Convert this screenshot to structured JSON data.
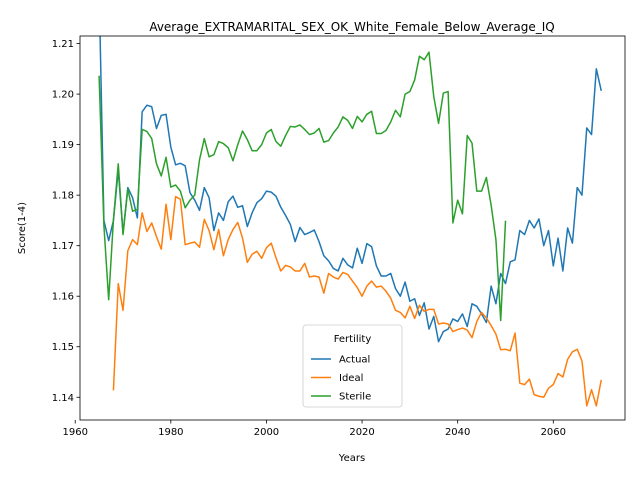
{
  "chart_data": {
    "type": "line",
    "title": "Average_EXTRAMARITAL_SEX_OK_White_Female_Below_Average_IQ",
    "xlabel": "Years",
    "ylabel": "Score(1-4)",
    "xlim": [
      1961,
      2075
    ],
    "ylim": [
      1.1355,
      1.2115
    ],
    "xticks": [
      1960,
      1980,
      2000,
      2020,
      2040,
      2060
    ],
    "yticks": [
      1.14,
      1.15,
      1.16,
      1.17,
      1.18,
      1.19,
      1.2,
      1.21
    ],
    "ytick_labels": [
      "1.14",
      "1.15",
      "1.16",
      "1.17",
      "1.18",
      "1.19",
      "1.20",
      "1.21"
    ],
    "grid": false,
    "legend": {
      "title": "Fertility",
      "placement": "lower-center"
    },
    "series": [
      {
        "name": "Actual",
        "color": "#1f77b4",
        "x": [
          1965,
          1966,
          1967,
          1968,
          1969,
          1970,
          1971,
          1972,
          1973,
          1974,
          1975,
          1976,
          1977,
          1978,
          1979,
          1980,
          1981,
          1982,
          1983,
          1984,
          1985,
          1986,
          1987,
          1988,
          1989,
          1990,
          1991,
          1992,
          1993,
          1994,
          1995,
          1996,
          1997,
          1998,
          1999,
          2000,
          2001,
          2002,
          2003,
          2004,
          2005,
          2006,
          2007,
          2008,
          2009,
          2010,
          2011,
          2012,
          2013,
          2014,
          2015,
          2016,
          2017,
          2018,
          2019,
          2020,
          2021,
          2022,
          2023,
          2024,
          2025,
          2026,
          2027,
          2028,
          2029,
          2030,
          2031,
          2032,
          2033,
          2034,
          2035,
          2036,
          2037,
          2038,
          2039,
          2040,
          2041,
          2042,
          2043,
          2044,
          2045,
          2046,
          2047,
          2048,
          2049,
          2050,
          2051,
          2052,
          2053,
          2054,
          2055,
          2056,
          2057,
          2058,
          2059,
          2060,
          2061,
          2062,
          2063,
          2064,
          2065,
          2066,
          2067,
          2068,
          2069,
          2070
        ],
        "y": [
          1.2208,
          1.175,
          1.171,
          1.175,
          1.185,
          1.1725,
          1.1815,
          1.1795,
          1.1755,
          1.1965,
          1.1978,
          1.1975,
          1.1932,
          1.1958,
          1.196,
          1.1895,
          1.186,
          1.1863,
          1.1858,
          1.1805,
          1.179,
          1.177,
          1.1815,
          1.1795,
          1.173,
          1.1765,
          1.175,
          1.1787,
          1.1798,
          1.1776,
          1.1779,
          1.1738,
          1.1765,
          1.1785,
          1.1793,
          1.1808,
          1.1806,
          1.1798,
          1.1776,
          1.176,
          1.1742,
          1.1708,
          1.1736,
          1.1722,
          1.1726,
          1.1731,
          1.1708,
          1.168,
          1.167,
          1.1655,
          1.165,
          1.1675,
          1.1662,
          1.1656,
          1.1695,
          1.1665,
          1.1704,
          1.1698,
          1.166,
          1.164,
          1.164,
          1.1645,
          1.1615,
          1.16,
          1.1628,
          1.159,
          1.1595,
          1.1562,
          1.1587,
          1.1535,
          1.156,
          1.151,
          1.153,
          1.1535,
          1.1555,
          1.155,
          1.1565,
          1.154,
          1.1585,
          1.158,
          1.1565,
          1.1548,
          1.162,
          1.1585,
          1.1645,
          1.1625,
          1.1668,
          1.1672,
          1.173,
          1.1722,
          1.175,
          1.1735,
          1.1753,
          1.17,
          1.173,
          1.166,
          1.1715,
          1.165,
          1.1735,
          1.1705,
          1.1815,
          1.18,
          1.1933,
          1.192,
          1.205,
          1.2008
        ]
      },
      {
        "name": "Ideal",
        "color": "#ff7f0e",
        "x": [
          1968,
          1969,
          1970,
          1971,
          1972,
          1973,
          1974,
          1975,
          1976,
          1977,
          1978,
          1979,
          1980,
          1981,
          1982,
          1983,
          1984,
          1985,
          1986,
          1987,
          1988,
          1989,
          1990,
          1991,
          1992,
          1993,
          1994,
          1995,
          1996,
          1997,
          1998,
          1999,
          2000,
          2001,
          2002,
          2003,
          2004,
          2005,
          2006,
          2007,
          2008,
          2009,
          2010,
          2011,
          2012,
          2013,
          2014,
          2015,
          2016,
          2017,
          2018,
          2019,
          2020,
          2021,
          2022,
          2023,
          2024,
          2025,
          2026,
          2027,
          2028,
          2029,
          2030,
          2031,
          2032,
          2033,
          2034,
          2035,
          2036,
          2037,
          2038,
          2039,
          2040,
          2041,
          2042,
          2043,
          2044,
          2045,
          2046,
          2047,
          2048,
          2049,
          2050,
          2051,
          2052,
          2053,
          2054,
          2055,
          2056,
          2057,
          2058,
          2059,
          2060,
          2061,
          2062,
          2063,
          2064,
          2065,
          2066,
          2067,
          2068,
          2069,
          2070
        ],
        "y": [
          1.1415,
          1.1625,
          1.1572,
          1.169,
          1.1712,
          1.1702,
          1.1765,
          1.1728,
          1.1745,
          1.1718,
          1.1693,
          1.1782,
          1.1712,
          1.1797,
          1.1792,
          1.1702,
          1.1705,
          1.1707,
          1.1697,
          1.1752,
          1.173,
          1.1692,
          1.1732,
          1.168,
          1.1712,
          1.1732,
          1.1746,
          1.1715,
          1.1667,
          1.1683,
          1.1689,
          1.1675,
          1.1696,
          1.1705,
          1.1676,
          1.165,
          1.1661,
          1.1658,
          1.165,
          1.165,
          1.1665,
          1.1638,
          1.164,
          1.1638,
          1.1606,
          1.1645,
          1.1638,
          1.1634,
          1.1647,
          1.1643,
          1.163,
          1.1617,
          1.16,
          1.162,
          1.163,
          1.1618,
          1.162,
          1.161,
          1.1596,
          1.1572,
          1.1568,
          1.1557,
          1.158,
          1.1556,
          1.1582,
          1.157,
          1.1574,
          1.1574,
          1.1545,
          1.1547,
          1.1545,
          1.153,
          1.1534,
          1.1537,
          1.1533,
          1.1518,
          1.155,
          1.1568,
          1.1557,
          1.1542,
          1.1525,
          1.1494,
          1.1495,
          1.1492,
          1.1527,
          1.1428,
          1.1425,
          1.1436,
          1.1405,
          1.1402,
          1.14,
          1.1418,
          1.1425,
          1.1447,
          1.144,
          1.1475,
          1.149,
          1.1495,
          1.1472,
          1.1383,
          1.1415,
          1.1383,
          1.1433
        ]
      },
      {
        "name": "Sterile",
        "color": "#2ca02c",
        "x": [
          1965,
          1966,
          1967,
          1968,
          1969,
          1970,
          1971,
          1972,
          1973,
          1974,
          1975,
          1976,
          1977,
          1978,
          1979,
          1980,
          1981,
          1982,
          1983,
          1984,
          1985,
          1986,
          1987,
          1988,
          1989,
          1990,
          1991,
          1992,
          1993,
          1994,
          1995,
          1996,
          1997,
          1998,
          1999,
          2000,
          2001,
          2002,
          2003,
          2004,
          2005,
          2006,
          2007,
          2008,
          2009,
          2010,
          2011,
          2012,
          2013,
          2014,
          2015,
          2016,
          2017,
          2018,
          2019,
          2020,
          2021,
          2022,
          2023,
          2024,
          2025,
          2026,
          2027,
          2028,
          2029,
          2030,
          2031,
          2032,
          2033,
          2034,
          2035,
          2036,
          2037,
          2038,
          2039,
          2040,
          2041,
          2042,
          2043,
          2044,
          2045,
          2046,
          2047,
          2048,
          2049,
          2050
        ],
        "y": [
          1.2035,
          1.174,
          1.1593,
          1.1752,
          1.1862,
          1.1722,
          1.1812,
          1.1768,
          1.1772,
          1.193,
          1.1926,
          1.1912,
          1.1862,
          1.1838,
          1.1875,
          1.1816,
          1.182,
          1.1808,
          1.1775,
          1.179,
          1.18,
          1.187,
          1.1912,
          1.1876,
          1.188,
          1.1906,
          1.1902,
          1.1894,
          1.1868,
          1.19,
          1.1927,
          1.191,
          1.1888,
          1.1888,
          1.19,
          1.1923,
          1.193,
          1.1906,
          1.1897,
          1.1918,
          1.1936,
          1.1935,
          1.1939,
          1.193,
          1.192,
          1.1923,
          1.1932,
          1.1905,
          1.1908,
          1.1923,
          1.1935,
          1.1955,
          1.1948,
          1.1932,
          1.1956,
          1.1945,
          1.196,
          1.1966,
          1.1922,
          1.1922,
          1.1928,
          1.1945,
          1.1968,
          1.1955,
          1.2,
          1.2005,
          1.2028,
          1.2075,
          1.2068,
          1.2083,
          1.1995,
          1.1942,
          1.2002,
          1.2005,
          1.1745,
          1.179,
          1.1763,
          1.1918,
          1.1903,
          1.1808,
          1.1808,
          1.1835,
          1.178,
          1.1712,
          1.1552,
          1.1748
        ]
      }
    ]
  }
}
